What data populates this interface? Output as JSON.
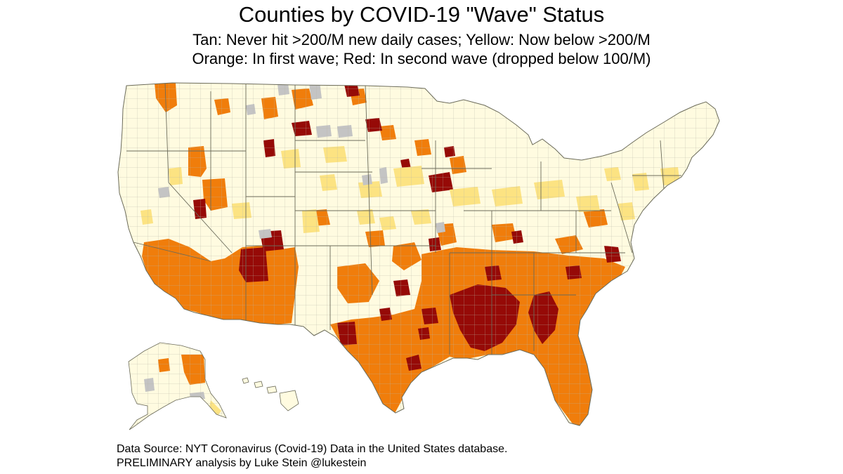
{
  "title": "Counties by COVID-19 \"Wave\" Status",
  "subtitle_line1": "Tan: Never hit >200/M new daily cases; Yellow: Now below >200/M",
  "subtitle_line2": "Orange: In first wave; Red: In second wave (dropped below 100/M)",
  "source_line1": "Data Source: NYT Coronavirus (Covid-19) Data in the United States database.",
  "source_line2": "PRELIMINARY analysis by Luke Stein @lukestein",
  "colors": {
    "tan": "#fffbe0",
    "yellow": "#fce382",
    "orange": "#f07d0b",
    "red": "#960a07",
    "gray": "#c4c4c4",
    "border": "#b8b6a6"
  },
  "map_regions": [
    "conterminous-united-states",
    "alaska",
    "hawaii"
  ]
}
